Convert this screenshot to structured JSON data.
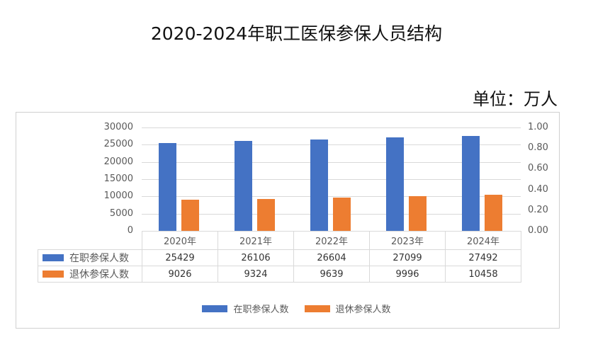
{
  "chart_data": {
    "type": "bar",
    "title": "2020-2024年职工医保参保人员结构",
    "unit": "单位：万人",
    "categories": [
      "2020年",
      "2021年",
      "2022年",
      "2023年",
      "2024年"
    ],
    "series": [
      {
        "name": "在职参保人数",
        "values": [
          25429,
          26106,
          26604,
          27099,
          27492
        ],
        "color": "#4472c4"
      },
      {
        "name": "退休参保人数",
        "values": [
          9026,
          9324,
          9639,
          9996,
          10458
        ],
        "color": "#ed7d31"
      }
    ],
    "ylim": [
      0,
      30000
    ],
    "yticks": [
      "0",
      "5000",
      "10000",
      "15000",
      "20000",
      "25000",
      "30000"
    ],
    "y2ticks": [
      "0.00",
      "0.20",
      "0.40",
      "0.60",
      "0.80",
      "1.00"
    ],
    "grid": true,
    "legend": "bottom",
    "data_table": true
  }
}
